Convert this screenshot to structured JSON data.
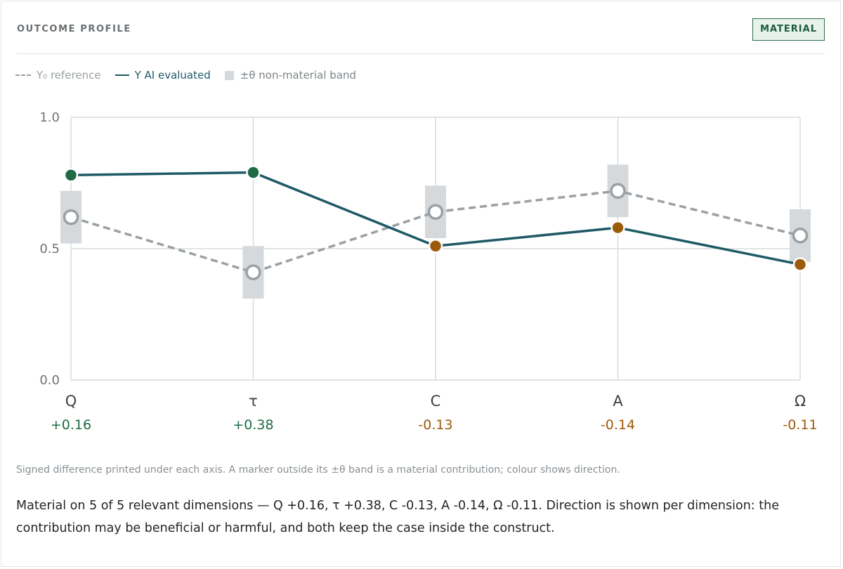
{
  "header": {
    "title": "OUTCOME PROFILE",
    "badge": "MATERIAL"
  },
  "legend": {
    "reference": "Y₀ reference",
    "evaluated": "Y AI evaluated",
    "band": "±θ non-material band"
  },
  "colors": {
    "reference": "#9aa0a3",
    "evaluated": "#1e5a66",
    "band": "#d6d9db",
    "positive": "#1e6b45",
    "negative": "#9c5b0a",
    "grid": "#d9dcdc"
  },
  "chart_data": {
    "type": "line",
    "categories": [
      "Q",
      "τ",
      "C",
      "A",
      "Ω"
    ],
    "ylim": [
      0,
      1
    ],
    "yticks": [
      "0.0",
      "0.5",
      "1.0"
    ],
    "grid": true,
    "legend_position": "top-left",
    "series": [
      {
        "name": "Y₀ reference",
        "style": "dashed",
        "values": [
          0.62,
          0.41,
          0.64,
          0.72,
          0.55
        ]
      },
      {
        "name": "Y AI evaluated",
        "style": "solid",
        "values": [
          0.78,
          0.79,
          0.51,
          0.58,
          0.44
        ]
      }
    ],
    "band_half_width": 0.1,
    "differences": [
      "+0.16",
      "+0.38",
      "-0.13",
      "-0.14",
      "-0.11"
    ],
    "direction": [
      "positive",
      "positive",
      "negative",
      "negative",
      "negative"
    ]
  },
  "footnote": "Signed difference printed under each axis. A marker outside its ±θ band is a material contribution; colour shows direction.",
  "summary": "Material on 5 of 5 relevant dimensions — Q +0.16, τ +0.38, C -0.13, A -0.14, Ω -0.11. Direction is shown per dimension: the contribution may be beneficial or harmful, and both keep the case inside the construct."
}
